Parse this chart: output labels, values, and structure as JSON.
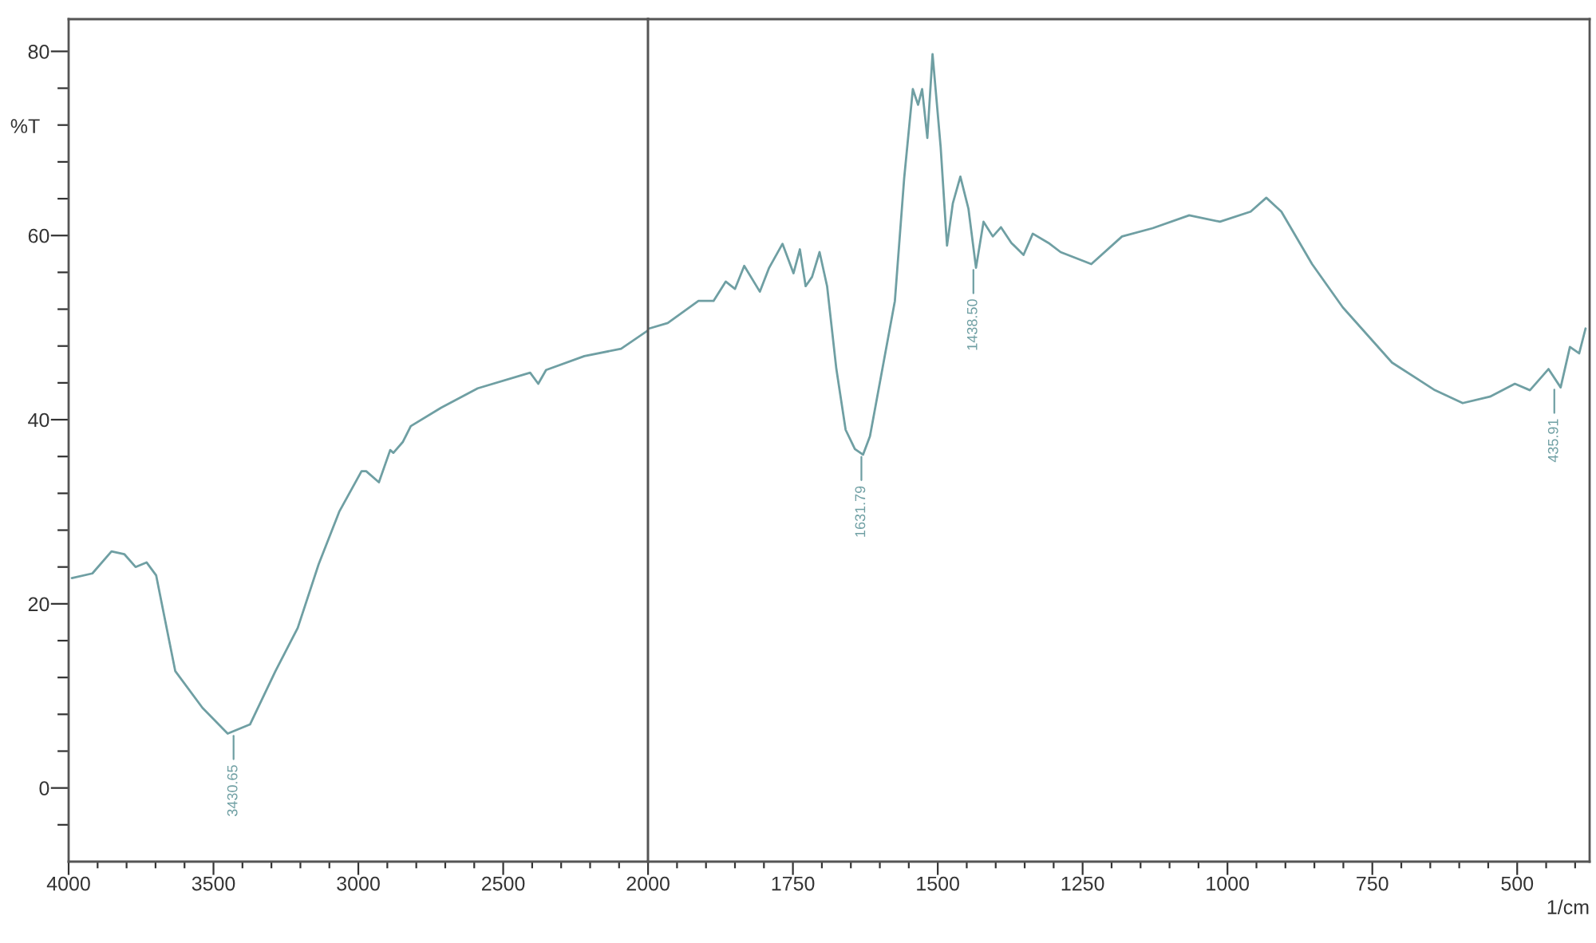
{
  "chart_data": [
    {
      "type": "line",
      "ylabel": "%T",
      "xlim": [
        4000,
        2000
      ],
      "ylim": [
        -8,
        83.5
      ],
      "grid": false,
      "tick_labels": "xy",
      "xticks": [
        4000,
        3500,
        3000,
        2500,
        2000,
        {
          "value": 3900,
          "label": null
        },
        {
          "value": 3800,
          "label": null
        },
        {
          "value": 3700,
          "label": null
        },
        {
          "value": 3600,
          "label": null
        },
        {
          "value": 3400,
          "label": null
        },
        {
          "value": 3300,
          "label": null
        },
        {
          "value": 3200,
          "label": null
        },
        {
          "value": 3100,
          "label": null
        },
        {
          "value": 2900,
          "label": null
        },
        {
          "value": 2800,
          "label": null
        },
        {
          "value": 2700,
          "label": null
        },
        {
          "value": 2600,
          "label": null
        },
        {
          "value": 2400,
          "label": null
        },
        {
          "value": 2300,
          "label": null
        },
        {
          "value": 2200,
          "label": null
        },
        {
          "value": 2100,
          "label": null
        }
      ],
      "yticks": [
        0,
        20,
        40,
        60,
        80,
        {
          "value": -4,
          "label": null
        },
        {
          "value": 4,
          "label": null
        },
        {
          "value": 8,
          "label": null
        },
        {
          "value": 12,
          "label": null
        },
        {
          "value": 16,
          "label": null
        },
        {
          "value": 24,
          "label": null
        },
        {
          "value": 28,
          "label": null
        },
        {
          "value": 32,
          "label": null
        },
        {
          "value": 36,
          "label": null
        },
        {
          "value": 44,
          "label": null
        },
        {
          "value": 48,
          "label": null
        },
        {
          "value": 52,
          "label": null
        },
        {
          "value": 56,
          "label": null
        },
        {
          "value": 64,
          "label": null
        },
        {
          "value": 68,
          "label": null
        },
        {
          "value": 72,
          "label": null
        },
        {
          "value": 76,
          "label": null
        }
      ],
      "series": [
        {
          "color": "#6f9fa3",
          "x": [
            3989,
            3918,
            3852,
            3808,
            3769,
            3731,
            3698,
            3632,
            3538,
            3451,
            3374,
            3286,
            3209,
            3137,
            3066,
            2989,
            2973,
            2929,
            2890,
            2879,
            2846,
            2819,
            2714,
            2588,
            2407,
            2379,
            2352,
            2220,
            2093,
            2000
          ],
          "values": [
            22.8,
            23.3,
            25.7,
            25.4,
            24.0,
            24.5,
            23.1,
            12.7,
            8.7,
            5.9,
            6.9,
            12.7,
            17.4,
            24.3,
            30.0,
            34.4,
            34.4,
            33.2,
            36.7,
            36.4,
            37.6,
            39.3,
            41.3,
            43.4,
            45.1,
            43.9,
            45.4,
            46.9,
            47.7,
            49.7
          ]
        }
      ],
      "annotations": [
        {
          "text": "3430.65",
          "x": 3430.65,
          "y": 5.9
        }
      ]
    },
    {
      "type": "line",
      "xlabel": "1/cm",
      "xlim": [
        2000,
        375
      ],
      "ylim": [
        -8,
        83.5
      ],
      "grid": false,
      "tick_labels": "x",
      "xticks": [
        1750,
        1500,
        1250,
        1000,
        750,
        500,
        {
          "value": 1950,
          "label": null
        },
        {
          "value": 1900,
          "label": null
        },
        {
          "value": 1850,
          "label": null
        },
        {
          "value": 1800,
          "label": null
        },
        {
          "value": 1700,
          "label": null
        },
        {
          "value": 1650,
          "label": null
        },
        {
          "value": 1600,
          "label": null
        },
        {
          "value": 1550,
          "label": null
        },
        {
          "value": 1450,
          "label": null
        },
        {
          "value": 1400,
          "label": null
        },
        {
          "value": 1350,
          "label": null
        },
        {
          "value": 1300,
          "label": null
        },
        {
          "value": 1200,
          "label": null
        },
        {
          "value": 1150,
          "label": null
        },
        {
          "value": 1100,
          "label": null
        },
        {
          "value": 1050,
          "label": null
        },
        {
          "value": 950,
          "label": null
        },
        {
          "value": 900,
          "label": null
        },
        {
          "value": 850,
          "label": null
        },
        {
          "value": 800,
          "label": null
        },
        {
          "value": 700,
          "label": null
        },
        {
          "value": 650,
          "label": null
        },
        {
          "value": 600,
          "label": null
        },
        {
          "value": 550,
          "label": null
        },
        {
          "value": 450,
          "label": null
        },
        {
          "value": 400,
          "label": null
        }
      ],
      "series": [
        {
          "color": "#6f9fa3",
          "x": [
            1998,
            1966,
            1913,
            1887,
            1866,
            1850,
            1834,
            1807,
            1791,
            1768,
            1749,
            1738,
            1728,
            1717,
            1704,
            1691,
            1675,
            1659,
            1643,
            1629,
            1617,
            1574,
            1558,
            1543,
            1534,
            1527,
            1518,
            1509,
            1495,
            1484,
            1474,
            1461,
            1447,
            1434,
            1421,
            1405,
            1391,
            1373,
            1352,
            1336,
            1309,
            1288,
            1235,
            1182,
            1129,
            1066,
            1013,
            960,
            933,
            907,
            854,
            801,
            716,
            642,
            594,
            547,
            504,
            478,
            446,
            425,
            409,
            393,
            382
          ],
          "values": [
            49.9,
            50.5,
            52.9,
            52.9,
            55.0,
            54.2,
            56.7,
            53.9,
            56.5,
            59.1,
            55.9,
            58.5,
            54.5,
            55.5,
            58.2,
            54.5,
            45.5,
            38.9,
            36.8,
            36.2,
            38.2,
            52.9,
            66.2,
            75.9,
            74.2,
            75.9,
            70.6,
            79.7,
            69.6,
            58.9,
            63.5,
            66.4,
            62.9,
            56.5,
            61.5,
            59.9,
            60.9,
            59.2,
            57.9,
            60.2,
            59.2,
            58.2,
            56.9,
            59.9,
            60.8,
            62.2,
            61.5,
            62.6,
            64.1,
            62.6,
            56.9,
            52.2,
            46.2,
            43.2,
            41.8,
            42.5,
            43.9,
            43.2,
            45.5,
            43.5,
            47.9,
            47.2,
            49.9
          ]
        }
      ],
      "annotations": [
        {
          "text": "1631.79",
          "x": 1631.79,
          "y": 36.2
        },
        {
          "text": "1438.50",
          "x": 1438.5,
          "y": 56.5
        },
        {
          "text": "435.91",
          "x": 435.91,
          "y": 43.5
        }
      ]
    }
  ]
}
